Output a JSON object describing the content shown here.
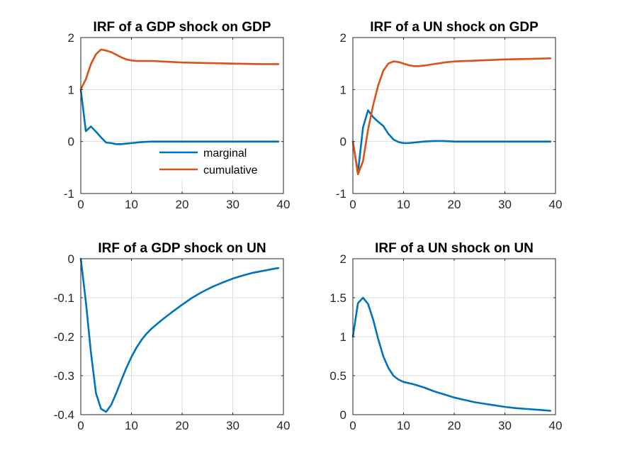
{
  "chart_data": [
    {
      "type": "line",
      "title": "IRF of a GDP shock on GDP",
      "xlim": [
        0,
        40
      ],
      "ylim": [
        -1,
        2
      ],
      "xticks": [
        0,
        10,
        20,
        30,
        40
      ],
      "yticks": [
        -1,
        0,
        1,
        2
      ],
      "xtick_labels": [
        "0",
        "10",
        "20",
        "30",
        "40"
      ],
      "ytick_labels": [
        "-1",
        "0",
        "1",
        "2"
      ],
      "legend": {
        "location": "bottom-right",
        "entries": [
          "marginal",
          "cumulative"
        ]
      },
      "series": [
        {
          "name": "marginal",
          "color": "#0072BD",
          "x": [
            0,
            1,
            2,
            3,
            4,
            5,
            6,
            7,
            8,
            9,
            10,
            12,
            14,
            16,
            18,
            20,
            25,
            30,
            35,
            39
          ],
          "y": [
            1,
            0.2,
            0.29,
            0.19,
            0.08,
            -0.02,
            -0.03,
            -0.05,
            -0.05,
            -0.04,
            -0.03,
            -0.01,
            0,
            0,
            0,
            0,
            0,
            0,
            0,
            0
          ]
        },
        {
          "name": "cumulative",
          "color": "#D95319",
          "x": [
            0,
            1,
            2,
            3,
            4,
            5,
            6,
            7,
            8,
            9,
            10,
            11,
            12,
            14,
            16,
            18,
            20,
            25,
            30,
            35,
            39
          ],
          "y": [
            1,
            1.2,
            1.49,
            1.68,
            1.77,
            1.75,
            1.72,
            1.67,
            1.62,
            1.58,
            1.56,
            1.55,
            1.55,
            1.55,
            1.54,
            1.53,
            1.52,
            1.51,
            1.5,
            1.49,
            1.49
          ]
        }
      ]
    },
    {
      "type": "line",
      "title": "IRF of a UN shock on GDP",
      "xlim": [
        0,
        40
      ],
      "ylim": [
        -1,
        2
      ],
      "xticks": [
        0,
        10,
        20,
        30,
        40
      ],
      "yticks": [
        -1,
        0,
        1,
        2
      ],
      "xtick_labels": [
        "0",
        "10",
        "20",
        "30",
        "40"
      ],
      "ytick_labels": [
        "-1",
        "0",
        "1",
        "2"
      ],
      "series": [
        {
          "name": "marginal",
          "color": "#0072BD",
          "x": [
            0,
            1,
            2,
            3,
            4,
            5,
            6,
            7,
            8,
            9,
            10,
            11,
            12,
            14,
            16,
            18,
            20,
            25,
            30,
            35,
            39
          ],
          "y": [
            0,
            -0.6,
            0.27,
            0.6,
            0.47,
            0.38,
            0.3,
            0.15,
            0.04,
            -0.01,
            -0.03,
            -0.03,
            -0.02,
            0,
            0.01,
            0.01,
            0,
            0,
            0,
            0,
            0
          ]
        },
        {
          "name": "cumulative",
          "color": "#D95319",
          "x": [
            0,
            1,
            2,
            3,
            4,
            5,
            6,
            7,
            8,
            9,
            10,
            11,
            12,
            13,
            14,
            16,
            18,
            20,
            25,
            30,
            35,
            39
          ],
          "y": [
            0,
            -0.63,
            -0.38,
            0.23,
            0.7,
            1.08,
            1.36,
            1.5,
            1.54,
            1.53,
            1.5,
            1.47,
            1.45,
            1.45,
            1.46,
            1.49,
            1.52,
            1.54,
            1.56,
            1.58,
            1.59,
            1.6
          ]
        }
      ]
    },
    {
      "type": "line",
      "title": "IRF of a GDP shock on UN",
      "xlim": [
        0,
        40
      ],
      "ylim": [
        -0.4,
        0
      ],
      "xticks": [
        0,
        10,
        20,
        30,
        40
      ],
      "yticks": [
        -0.4,
        -0.3,
        -0.2,
        -0.1,
        0
      ],
      "xtick_labels": [
        "0",
        "10",
        "20",
        "30",
        "40"
      ],
      "ytick_labels": [
        "-0.4",
        "-0.3",
        "-0.2",
        "-0.1",
        "0"
      ],
      "series": [
        {
          "name": "marginal",
          "color": "#0072BD",
          "x": [
            0,
            1,
            2,
            3,
            4,
            5,
            6,
            7,
            8,
            9,
            10,
            11,
            12,
            13,
            14,
            15,
            16,
            18,
            20,
            22,
            24,
            26,
            28,
            30,
            32,
            34,
            36,
            38,
            39
          ],
          "y": [
            0,
            -0.11,
            -0.24,
            -0.345,
            -0.385,
            -0.393,
            -0.375,
            -0.345,
            -0.312,
            -0.28,
            -0.252,
            -0.228,
            -0.208,
            -0.192,
            -0.179,
            -0.168,
            -0.157,
            -0.137,
            -0.118,
            -0.1,
            -0.085,
            -0.072,
            -0.061,
            -0.051,
            -0.043,
            -0.036,
            -0.031,
            -0.026,
            -0.024
          ]
        }
      ]
    },
    {
      "type": "line",
      "title": "IRF of a UN shock on UN",
      "xlim": [
        0,
        40
      ],
      "ylim": [
        0,
        2
      ],
      "xticks": [
        0,
        10,
        20,
        30,
        40
      ],
      "yticks": [
        0,
        0.5,
        1,
        1.5,
        2
      ],
      "xtick_labels": [
        "0",
        "10",
        "20",
        "30",
        "40"
      ],
      "ytick_labels": [
        "0",
        "0.5",
        "1",
        "1.5",
        "2"
      ],
      "series": [
        {
          "name": "marginal",
          "color": "#0072BD",
          "x": [
            0,
            1,
            2,
            3,
            4,
            5,
            6,
            7,
            8,
            9,
            10,
            12,
            14,
            16,
            18,
            20,
            22,
            24,
            26,
            28,
            30,
            32,
            34,
            36,
            38,
            39
          ],
          "y": [
            1,
            1.43,
            1.5,
            1.42,
            1.22,
            0.97,
            0.75,
            0.6,
            0.5,
            0.45,
            0.42,
            0.39,
            0.35,
            0.3,
            0.26,
            0.22,
            0.19,
            0.16,
            0.14,
            0.12,
            0.1,
            0.085,
            0.075,
            0.065,
            0.055,
            0.05
          ]
        }
      ]
    }
  ]
}
